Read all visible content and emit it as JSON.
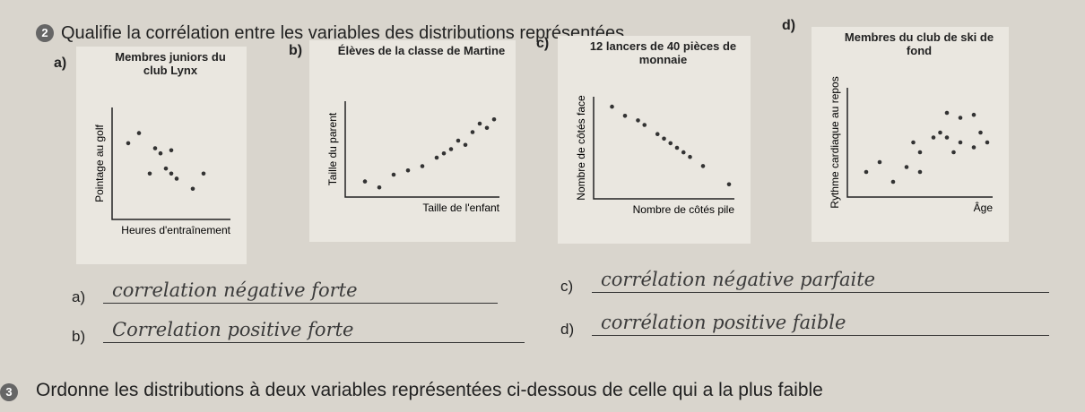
{
  "question2": {
    "number": "2",
    "text": "Qualifie la corrélation entre les variables des distributions représentées"
  },
  "chart_data": [
    {
      "type": "scatter",
      "letter": "a)",
      "title": "Membres juniors du club Lynx",
      "ylabel": "Pointage au golf",
      "xlabel": "Heures d'entraînement",
      "x": [
        1,
        2,
        3.5,
        4,
        5,
        3,
        4.5,
        5,
        5.5,
        7,
        8
      ],
      "y": [
        7,
        8,
        6.5,
        6,
        6.3,
        4,
        4.5,
        4,
        3.5,
        2.5,
        4
      ],
      "xlim": [
        0,
        10
      ],
      "ylim": [
        0,
        10
      ]
    },
    {
      "type": "scatter",
      "letter": "b)",
      "title": "Élèves de la classe de Martine",
      "ylabel": "Taille du parent",
      "xlabel": "Taille de l'enfant",
      "x": [
        1,
        2,
        3,
        4,
        5,
        6,
        6.5,
        7,
        7.5,
        8,
        8.5,
        9,
        9.5,
        10
      ],
      "y": [
        1.2,
        0.5,
        2,
        2.5,
        3,
        4,
        4.5,
        5,
        6,
        5.5,
        7,
        8,
        7.5,
        8.5
      ],
      "xlim": [
        0,
        10
      ],
      "ylim": [
        0,
        10
      ]
    },
    {
      "type": "scatter",
      "letter": "c)",
      "title": "12 lancers de 40 pièces de monnaie",
      "ylabel": "Nombre de côtés face",
      "xlabel": "Nombre de côtés pile",
      "x": [
        1,
        2,
        3,
        3.5,
        4.5,
        5,
        5.5,
        6,
        6.5,
        7,
        8,
        10
      ],
      "y": [
        9.5,
        8.5,
        8,
        7.5,
        6.5,
        6,
        5.5,
        5,
        4.5,
        4,
        3,
        1
      ],
      "xlim": [
        0,
        10
      ],
      "ylim": [
        0,
        10
      ]
    },
    {
      "type": "scatter",
      "letter": "d)",
      "title": "Membres du club de ski de fond",
      "ylabel": "Rythme cardiaque au repos",
      "xlabel": "Âge",
      "x": [
        1,
        2,
        3,
        4,
        5,
        4.5,
        5,
        6,
        6.5,
        7,
        7.5,
        8,
        9,
        9.5,
        7,
        8,
        9,
        10
      ],
      "y": [
        2,
        3,
        1,
        2.5,
        2,
        5,
        4,
        5.5,
        6,
        5.5,
        4,
        5,
        4.5,
        6,
        8,
        7.5,
        7.8,
        5
      ],
      "xlim": [
        0,
        10
      ],
      "ylim": [
        0,
        10
      ]
    }
  ],
  "answers": [
    {
      "letter": "a)",
      "text": "correlation négative forte"
    },
    {
      "letter": "b)",
      "text": "Correlation positive forte"
    },
    {
      "letter": "c)",
      "text": "corrélation négative parfaite"
    },
    {
      "letter": "d)",
      "text": "corrélation positive faible"
    }
  ],
  "question3": {
    "number": "3",
    "text": "Ordonne les distributions à deux variables représentées ci-dessous de celle qui a la plus faible"
  }
}
